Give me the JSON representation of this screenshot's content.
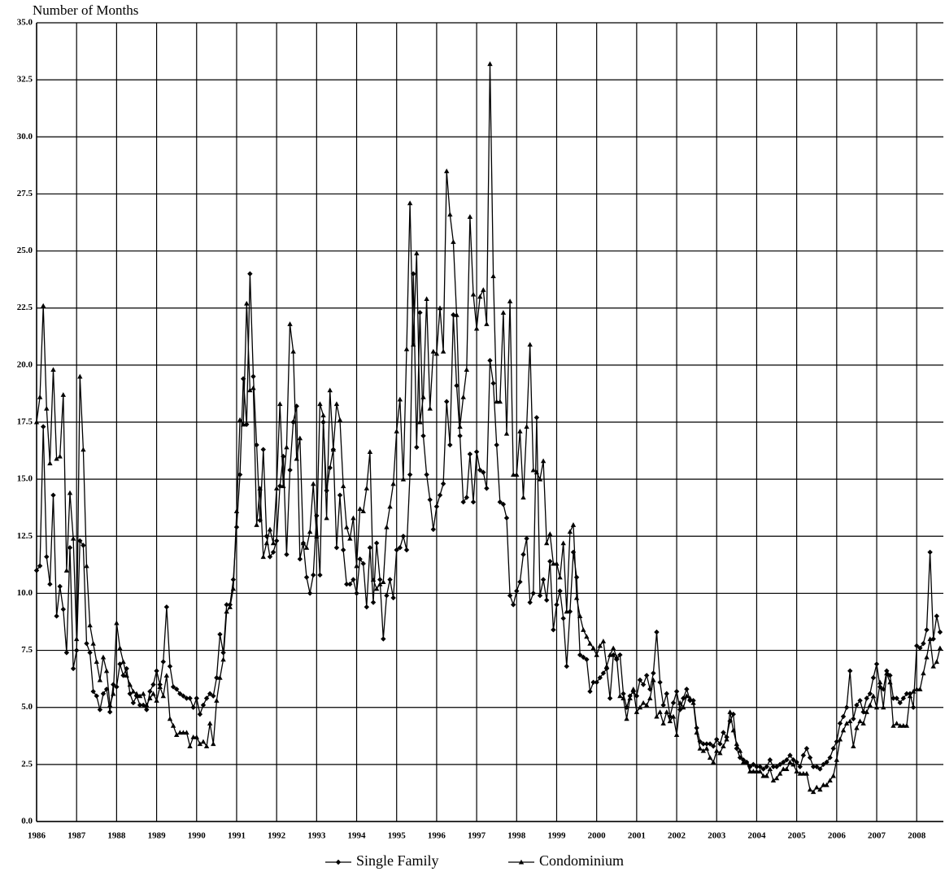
{
  "chart_data": {
    "type": "line",
    "y_label": "Number of Months",
    "categories": [
      "1986",
      null,
      null,
      null,
      null,
      null,
      null,
      null,
      null,
      null,
      null,
      null,
      "1987",
      null,
      null,
      null,
      null,
      null,
      null,
      null,
      null,
      null,
      null,
      null,
      "1988",
      null,
      null,
      null,
      null,
      null,
      null,
      null,
      null,
      null,
      null,
      null,
      "1989",
      null,
      null,
      null,
      null,
      null,
      null,
      null,
      null,
      null,
      null,
      null,
      "1990",
      null,
      null,
      null,
      null,
      null,
      null,
      null,
      null,
      null,
      null,
      null,
      "1991",
      null,
      null,
      null,
      null,
      null,
      null,
      null,
      null,
      null,
      null,
      null,
      "1992",
      null,
      null,
      null,
      null,
      null,
      null,
      null,
      null,
      null,
      null,
      null,
      "1993",
      null,
      null,
      null,
      null,
      null,
      null,
      null,
      null,
      null,
      null,
      null,
      "1994",
      null,
      null,
      null,
      null,
      null,
      null,
      null,
      null,
      null,
      null,
      null,
      "1995",
      null,
      null,
      null,
      null,
      null,
      null,
      null,
      null,
      null,
      null,
      null,
      "1996",
      null,
      null,
      null,
      null,
      null,
      null,
      null,
      null,
      null,
      null,
      null,
      "1997",
      null,
      null,
      null,
      null,
      null,
      null,
      null,
      null,
      null,
      null,
      null,
      "1998",
      null,
      null,
      null,
      null,
      null,
      null,
      null,
      null,
      null,
      null,
      null,
      "1999",
      null,
      null,
      null,
      null,
      null,
      null,
      null,
      null,
      null,
      null,
      null,
      "2000",
      null,
      null,
      null,
      null,
      null,
      null,
      null,
      null,
      null,
      null,
      null,
      "2001",
      null,
      null,
      null,
      null,
      null,
      null,
      null,
      null,
      null,
      null,
      null,
      "2002",
      null,
      null,
      null,
      null,
      null,
      null,
      null,
      null,
      null,
      null,
      null,
      "2003",
      null,
      null,
      null,
      null,
      null,
      null,
      null,
      null,
      null,
      null,
      null,
      "2004",
      null,
      null,
      null,
      null,
      null,
      null,
      null,
      null,
      null,
      null,
      null,
      "2005",
      null,
      null,
      null,
      null,
      null,
      null,
      null,
      null,
      null,
      null,
      null,
      "2006",
      null,
      null,
      null,
      null,
      null,
      null,
      null,
      null,
      null,
      null,
      null,
      "2007",
      null,
      null,
      null,
      null,
      null,
      null,
      null,
      null,
      null,
      null,
      null,
      "2008",
      null,
      null,
      null,
      null,
      null,
      null,
      null
    ],
    "series": [
      {
        "name": "Single Family",
        "color": "#000000",
        "marker": "diamond",
        "values": [
          11.0,
          11.2,
          17.3,
          11.6,
          10.4,
          14.3,
          9.0,
          10.3,
          9.3,
          7.4,
          12.0,
          6.7,
          7.5,
          12.3,
          12.1,
          7.8,
          7.4,
          5.7,
          5.5,
          4.9,
          5.6,
          5.8,
          4.8,
          6.0,
          5.9,
          6.9,
          6.4,
          6.7,
          5.6,
          5.2,
          5.5,
          5.1,
          5.1,
          4.9,
          5.7,
          6.0,
          6.6,
          6.0,
          7.0,
          9.4,
          6.8,
          5.9,
          5.8,
          5.6,
          5.5,
          5.4,
          5.4,
          5.0,
          5.4,
          4.7,
          5.1,
          5.4,
          5.6,
          5.5,
          6.3,
          8.2,
          7.4,
          9.5,
          9.5,
          10.6,
          12.9,
          15.2,
          19.4,
          17.4,
          24.0,
          19.5,
          16.5,
          13.2,
          16.3,
          12.5,
          11.6,
          11.8,
          12.3,
          14.7,
          16.0,
          11.7,
          15.4,
          17.5,
          18.2,
          11.5,
          12.2,
          10.7,
          10.0,
          10.8,
          13.4,
          10.8,
          17.5,
          14.5,
          15.5,
          16.3,
          12.0,
          14.3,
          11.9,
          10.4,
          10.4,
          10.6,
          10.0,
          11.5,
          11.3,
          9.4,
          12.0,
          9.6,
          12.2,
          10.6,
          8.0,
          9.9,
          10.6,
          9.8,
          11.9,
          12.0,
          12.5,
          11.9,
          15.2,
          24.0,
          16.4,
          22.3,
          16.9,
          15.2,
          14.1,
          12.8,
          13.8,
          14.3,
          14.8,
          18.4,
          16.5,
          22.2,
          19.1,
          16.9,
          14.0,
          14.2,
          16.1,
          14.0,
          16.2,
          15.4,
          15.3,
          14.6,
          20.2,
          19.2,
          16.5,
          14.0,
          13.9,
          13.3,
          9.9,
          9.5,
          10.1,
          10.5,
          11.7,
          12.4,
          9.6,
          10.0,
          17.7,
          9.9,
          10.6,
          9.7,
          11.4,
          8.4,
          9.5,
          10.1,
          8.9,
          6.8,
          9.2,
          11.8,
          10.7,
          7.3,
          7.2,
          7.1,
          5.7,
          6.1,
          6.1,
          6.3,
          6.5,
          6.7,
          5.4,
          7.3,
          7.1,
          7.3,
          5.6,
          5.0,
          5.5,
          5.7,
          5.5,
          6.2,
          6.0,
          6.4,
          5.8,
          6.5,
          8.3,
          6.1,
          5.1,
          5.6,
          4.6,
          5.2,
          5.7,
          4.9,
          5.4,
          5.8,
          5.3,
          5.3,
          4.1,
          3.5,
          3.4,
          3.4,
          3.4,
          3.3,
          3.6,
          3.4,
          3.9,
          3.7,
          4.4,
          4.7,
          3.2,
          2.8,
          2.7,
          2.6,
          2.4,
          2.5,
          2.4,
          2.4,
          2.3,
          2.4,
          2.7,
          2.4,
          2.4,
          2.5,
          2.6,
          2.7,
          2.9,
          2.7,
          2.6,
          2.4,
          2.9,
          3.2,
          2.8,
          2.4,
          2.4,
          2.3,
          2.5,
          2.6,
          2.8,
          3.2,
          3.5,
          4.3,
          4.6,
          5.0,
          6.6,
          4.5,
          5.1,
          5.3,
          4.8,
          5.4,
          5.6,
          6.3,
          6.9,
          5.9,
          5.8,
          6.6,
          6.4,
          5.4,
          5.4,
          5.2,
          5.4,
          5.6,
          5.6,
          5.0,
          7.7,
          7.6,
          7.8,
          8.4,
          11.8,
          8.0,
          9.0,
          8.3
        ]
      },
      {
        "name": "Condominium",
        "color": "#000000",
        "marker": "triangle",
        "values": [
          17.5,
          18.6,
          22.6,
          18.1,
          15.7,
          19.8,
          15.9,
          16.0,
          18.7,
          11.0,
          14.4,
          12.4,
          8.0,
          19.5,
          16.3,
          11.2,
          8.6,
          7.8,
          7.0,
          6.2,
          7.2,
          6.6,
          5.1,
          5.6,
          8.7,
          7.6,
          7.0,
          6.4,
          6.0,
          5.7,
          5.6,
          5.5,
          5.6,
          5.1,
          5.4,
          5.6,
          5.3,
          5.9,
          5.5,
          6.4,
          4.5,
          4.2,
          3.8,
          3.9,
          3.9,
          3.9,
          3.3,
          3.7,
          3.7,
          3.4,
          3.5,
          3.3,
          4.3,
          3.4,
          5.3,
          6.3,
          7.1,
          9.2,
          9.4,
          10.2,
          13.6,
          17.6,
          17.4,
          22.7,
          18.9,
          19.0,
          13.0,
          14.6,
          11.6,
          12.2,
          12.8,
          12.2,
          14.6,
          18.3,
          14.7,
          16.4,
          21.8,
          20.6,
          15.9,
          16.8,
          12.2,
          12.0,
          12.7,
          14.8,
          12.5,
          18.3,
          17.8,
          13.3,
          18.9,
          16.3,
          18.3,
          17.6,
          14.7,
          12.9,
          12.4,
          13.3,
          11.2,
          13.7,
          13.6,
          14.6,
          16.2,
          10.6,
          10.2,
          10.4,
          10.5,
          12.9,
          13.8,
          14.8,
          17.1,
          18.5,
          15.0,
          20.7,
          27.1,
          20.9,
          24.9,
          17.5,
          18.6,
          22.9,
          18.1,
          20.6,
          20.5,
          22.5,
          20.6,
          28.5,
          26.6,
          25.4,
          22.2,
          17.3,
          18.6,
          19.8,
          26.5,
          23.1,
          21.6,
          23.0,
          23.3,
          21.8,
          33.2,
          23.9,
          18.4,
          18.4,
          22.3,
          17.0,
          22.8,
          15.2,
          15.2,
          17.1,
          14.2,
          17.3,
          20.9,
          15.4,
          15.3,
          15.0,
          15.8,
          12.2,
          12.6,
          11.3,
          11.3,
          10.7,
          12.2,
          9.2,
          12.7,
          13.0,
          9.8,
          9.0,
          8.4,
          8.1,
          7.8,
          7.6,
          7.3,
          7.7,
          7.9,
          6.8,
          7.3,
          7.6,
          7.2,
          5.5,
          5.4,
          4.5,
          5.4,
          5.8,
          4.8,
          5.0,
          5.2,
          5.1,
          5.4,
          6.2,
          4.6,
          4.8,
          4.3,
          4.8,
          4.4,
          4.6,
          3.8,
          5.2,
          5.0,
          5.5,
          5.4,
          5.2,
          3.9,
          3.2,
          3.1,
          3.2,
          2.8,
          2.6,
          3.1,
          3.0,
          3.3,
          3.6,
          4.8,
          4.0,
          3.4,
          3.1,
          2.6,
          2.6,
          2.2,
          2.2,
          2.2,
          2.2,
          2.0,
          2.0,
          2.3,
          1.8,
          1.9,
          2.1,
          2.3,
          2.3,
          2.6,
          2.5,
          2.2,
          2.1,
          2.1,
          2.1,
          1.4,
          1.3,
          1.5,
          1.4,
          1.6,
          1.6,
          1.8,
          2.0,
          2.7,
          3.6,
          4.0,
          4.3,
          4.4,
          3.3,
          4.1,
          4.4,
          4.3,
          4.8,
          5.1,
          5.5,
          5.0,
          6.1,
          5.0,
          6.5,
          6.1,
          4.2,
          4.3,
          4.2,
          4.2,
          4.2,
          5.5,
          5.7,
          5.8,
          5.8,
          6.5,
          7.2,
          8.0,
          6.8,
          7.0,
          7.6
        ]
      }
    ],
    "ylim": [
      0,
      35
    ],
    "yticks": [
      {
        "value": 0,
        "label": "0.0"
      },
      2.5,
      {
        "value": 5,
        "label": "5.0"
      },
      7.5,
      {
        "value": 10,
        "label": "10.0"
      },
      12.5,
      {
        "value": 15,
        "label": "15.0"
      },
      17.5,
      {
        "value": 20,
        "label": "20.0"
      },
      22.5,
      {
        "value": 25,
        "label": "25.0"
      },
      27.5,
      {
        "value": 30,
        "label": "30.0"
      },
      32.5,
      {
        "value": 35,
        "label": "35.0"
      }
    ],
    "grid": true,
    "legend": "bottom"
  }
}
